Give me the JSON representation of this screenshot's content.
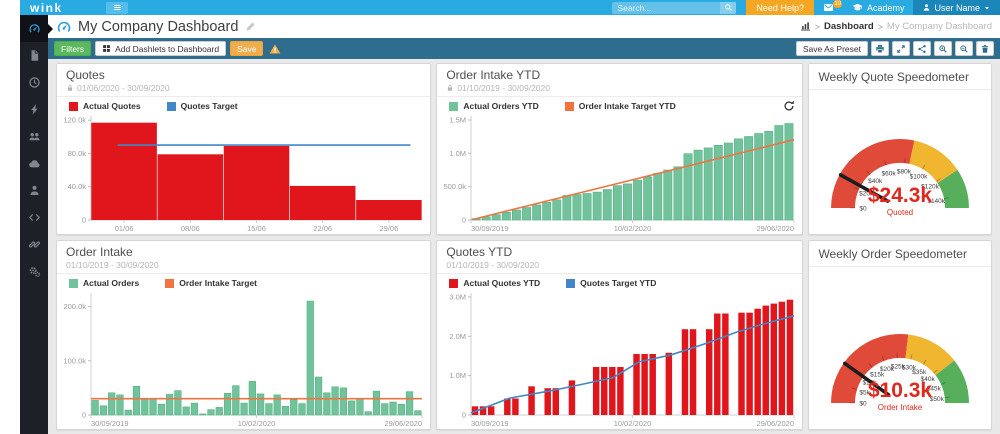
{
  "navbar": {
    "logo": "wink",
    "search_placeholder": "Search...",
    "need_help_label": "Need Help?",
    "messages_badge": "10",
    "academy_label": "Academy",
    "user_label": "User Name"
  },
  "title_bar": {
    "title": "My Company Dashboard",
    "breadcrumb_section": "Dashboard",
    "breadcrumb_page": "My Company Dashboard"
  },
  "toolbar": {
    "filters_label": "Filters",
    "add_dashlets_label": "Add Dashlets to Dashboard",
    "save_label": "Save",
    "save_as_preset_label": "Save As Preset",
    "icon_buttons": [
      "print",
      "expand",
      "share",
      "zoom-in",
      "zoom-out",
      "trash"
    ]
  },
  "sidebar": {
    "items": [
      {
        "name": "dashboard",
        "icon": "gauge",
        "active": true
      },
      {
        "name": "documents",
        "icon": "file",
        "active": false
      },
      {
        "name": "history",
        "icon": "clock",
        "active": false
      },
      {
        "name": "actions",
        "icon": "bolt",
        "active": false
      },
      {
        "name": "teams",
        "icon": "users",
        "active": false
      },
      {
        "name": "cloud",
        "icon": "cloud",
        "active": false
      },
      {
        "name": "contacts",
        "icon": "user",
        "active": false
      },
      {
        "name": "developer",
        "icon": "code",
        "active": false
      },
      {
        "name": "integrations",
        "icon": "link",
        "active": false
      },
      {
        "name": "settings",
        "icon": "gears",
        "active": false
      }
    ]
  },
  "colors": {
    "navbar_blue": "#29aae1",
    "toolbar_teal": "#2e6d8e",
    "accent_orange": "#f5a623",
    "bar_red": "#e0161c",
    "bar_green": "#72c39c",
    "line_blue": "#4186c6",
    "line_orange": "#ef7440",
    "gauge_red": "#e04a38",
    "gauge_yellow": "#f0b62f",
    "gauge_green": "#57ae5b",
    "gauge_text_red": "#e0281e"
  },
  "panels": [
    {
      "id": "quotes",
      "title": "Quotes",
      "subtitle": "01/06/2020 - 30/09/2020",
      "locked": true,
      "legend": [
        {
          "label": "Actual Quotes",
          "color": "#e0161c"
        },
        {
          "label": "Quotes Target",
          "color": "#4186c6"
        }
      ],
      "chart_data": {
        "type": "bar",
        "title": "Quotes",
        "categories": [
          "01/06",
          "08/06",
          "15/06",
          "22/06",
          "29/06"
        ],
        "values": [
          117000,
          79000,
          89000,
          41000,
          24000
        ],
        "ymax": 125000,
        "yticks": [
          {
            "v": 0,
            "label": "0"
          },
          {
            "v": 40000,
            "label": "40.0k"
          },
          {
            "v": 80000,
            "label": "80.0k"
          },
          {
            "v": 120000,
            "label": "120.0k"
          }
        ],
        "bar_color": "#e0161c",
        "bar_frac": 0.99,
        "target": {
          "name": "Quotes Target",
          "color": "#4186c6",
          "points": [
            {
              "x": 0.08,
              "v": 90000
            },
            {
              "x": 0.965,
              "v": 90000
            }
          ]
        }
      }
    },
    {
      "id": "order-intake-ytd",
      "title": "Order Intake YTD",
      "subtitle": "01/10/2019 - 30/09/2020",
      "locked": true,
      "refreshable": true,
      "legend": [
        {
          "label": "Actual Orders YTD",
          "color": "#72c39c"
        },
        {
          "label": "Order Intake Target YTD",
          "color": "#ef7440"
        }
      ],
      "chart_data": {
        "type": "bar",
        "title": "Order Intake YTD",
        "xlabels": [
          "30/09/2019",
          "10/02/2020",
          "29/06/2020"
        ],
        "values": [
          20000,
          48000,
          80000,
          115000,
          150000,
          188000,
          226000,
          264000,
          302000,
          368000,
          382000,
          398000,
          418000,
          458000,
          516000,
          542000,
          598000,
          648000,
          700000,
          750000,
          798000,
          995000,
          1048000,
          1082000,
          1120000,
          1155000,
          1218000,
          1252000,
          1298000,
          1330000,
          1418000,
          1448000
        ],
        "ymax": 1560000,
        "yticks": [
          {
            "v": 0,
            "label": "0"
          },
          {
            "v": 500000,
            "label": "500.0k"
          },
          {
            "v": 1000000,
            "label": "1.0M"
          },
          {
            "v": 1500000,
            "label": "1.5M"
          }
        ],
        "bar_color": "#72c39c",
        "bar_stroke": "#55b287",
        "bar_frac": 0.82,
        "target": {
          "name": "Order Intake Target YTD",
          "color": "#ef7440",
          "points": [
            {
              "x": 0.005,
              "v": 8000
            },
            {
              "x": 1,
              "v": 1205000
            }
          ]
        }
      }
    },
    {
      "id": "weekly-quote-speedometer",
      "title": "Weekly Quote Speedometer",
      "chart_data": {
        "type": "gauge",
        "title": "Weekly Quote Speedometer",
        "max": 150000,
        "value": 24300,
        "value_label": "$24.3k",
        "caption": "Quoted",
        "bands": [
          {
            "from": 0,
            "to": 85000,
            "color": "#e04a38"
          },
          {
            "from": 85000,
            "to": 122000,
            "color": "#f0b62f"
          },
          {
            "from": 122000,
            "to": 150000,
            "color": "#57ae5b"
          }
        ],
        "ticks": [
          {
            "v": 0,
            "label": "$0"
          },
          {
            "v": 20000,
            "label": "$20k"
          },
          {
            "v": 40000,
            "label": "$40k"
          },
          {
            "v": 60000,
            "label": "$60k"
          },
          {
            "v": 80000,
            "label": "$80k"
          },
          {
            "v": 100000,
            "label": "$100k"
          },
          {
            "v": 120000,
            "label": "$120k"
          },
          {
            "v": 140000,
            "label": "$140k"
          }
        ]
      }
    },
    {
      "id": "order-intake",
      "title": "Order Intake",
      "subtitle": "01/10/2019 - 30/09/2020",
      "locked": false,
      "legend": [
        {
          "label": "Actual Orders",
          "color": "#72c39c"
        },
        {
          "label": "Order Intake Target",
          "color": "#ef7440"
        }
      ],
      "chart_data": {
        "type": "bar",
        "title": "Order Intake",
        "xlabels": [
          "30/09/2019",
          "10/02/2020",
          "29/06/2020"
        ],
        "values": [
          27000,
          17000,
          41000,
          37000,
          9000,
          53000,
          29000,
          30000,
          20000,
          38000,
          45000,
          15000,
          22000,
          2000,
          10000,
          14000,
          40000,
          54000,
          22000,
          62000,
          39000,
          21000,
          37000,
          16000,
          28000,
          21000,
          210000,
          70000,
          41000,
          52000,
          50000,
          26000,
          29000,
          6000,
          44000,
          21000,
          24000,
          20000,
          43000,
          8000
        ],
        "ymax": 225000,
        "yticks": [
          {
            "v": 0,
            "label": "0"
          },
          {
            "v": 100000,
            "label": "100.0k"
          },
          {
            "v": 200000,
            "label": "200.0k"
          }
        ],
        "bar_color": "#72c39c",
        "bar_stroke": "#55b287",
        "bar_frac": 0.8,
        "target": {
          "name": "Order Intake Target",
          "color": "#ef7440",
          "points": [
            {
              "x": 0,
              "v": 30000
            },
            {
              "x": 1,
              "v": 30000
            }
          ]
        }
      }
    },
    {
      "id": "quotes-ytd",
      "title": "Quotes YTD",
      "subtitle": "01/10/2019 - 30/09/2020",
      "locked": false,
      "legend": [
        {
          "label": "Actual Quotes YTD",
          "color": "#e0161c"
        },
        {
          "label": "Quotes Target YTD",
          "color": "#4186c6"
        }
      ],
      "chart_data": {
        "type": "bar",
        "title": "Quotes YTD",
        "xlabels": [
          "30/09/2019",
          "10/02/2020",
          "29/06/2020"
        ],
        "values": [
          220000,
          220000,
          220000,
          0,
          420000,
          420000,
          0,
          730000,
          0,
          680000,
          680000,
          0,
          880000,
          0,
          0,
          1220000,
          1220000,
          1220000,
          1220000,
          0,
          1550000,
          1550000,
          1550000,
          0,
          1580000,
          0,
          2180000,
          2180000,
          0,
          2180000,
          2580000,
          2580000,
          0,
          2600000,
          2600000,
          2700000,
          2780000,
          2830000,
          2880000,
          2930000
        ],
        "ymax": 3100000,
        "yticks": [
          {
            "v": 0,
            "label": "0"
          },
          {
            "v": 1000000,
            "label": "1.0M"
          },
          {
            "v": 2000000,
            "label": "2.0M"
          },
          {
            "v": 3000000,
            "label": "3.0M"
          }
        ],
        "bar_color": "#e0161c",
        "bar_frac": 0.8,
        "target": {
          "name": "Quotes Target YTD",
          "color": "#4186c6",
          "points": [
            {
              "x": 0,
              "v": 50000
            },
            {
              "x": 0.12,
              "v": 430000
            },
            {
              "x": 0.25,
              "v": 620000
            },
            {
              "x": 0.35,
              "v": 790000
            },
            {
              "x": 0.44,
              "v": 950000
            },
            {
              "x": 0.52,
              "v": 1350000
            },
            {
              "x": 0.62,
              "v": 1530000
            },
            {
              "x": 0.72,
              "v": 1800000
            },
            {
              "x": 0.82,
              "v": 2100000
            },
            {
              "x": 0.9,
              "v": 2300000
            },
            {
              "x": 1,
              "v": 2520000
            }
          ]
        }
      }
    },
    {
      "id": "weekly-order-speedometer",
      "title": "Weekly Order Speedometer",
      "chart_data": {
        "type": "gauge",
        "title": "Weekly Order Speedometer",
        "max": 52000,
        "value": 10300,
        "value_label": "$10.3k",
        "caption": "Order Intake",
        "bands": [
          {
            "from": 0,
            "to": 28000,
            "color": "#e04a38"
          },
          {
            "from": 28000,
            "to": 41000,
            "color": "#f0b62f"
          },
          {
            "from": 41000,
            "to": 52000,
            "color": "#57ae5b"
          }
        ],
        "ticks": [
          {
            "v": 0,
            "label": "$0"
          },
          {
            "v": 5000,
            "label": "$5k"
          },
          {
            "v": 10000,
            "label": "$10k"
          },
          {
            "v": 15000,
            "label": "$15k"
          },
          {
            "v": 20000,
            "label": "$20k"
          },
          {
            "v": 25000,
            "label": "$25k"
          },
          {
            "v": 30000,
            "label": "$30k"
          },
          {
            "v": 35000,
            "label": "$35k"
          },
          {
            "v": 40000,
            "label": "$40k"
          },
          {
            "v": 45000,
            "label": "$45k"
          },
          {
            "v": 50000,
            "label": "$50k"
          }
        ]
      }
    }
  ]
}
